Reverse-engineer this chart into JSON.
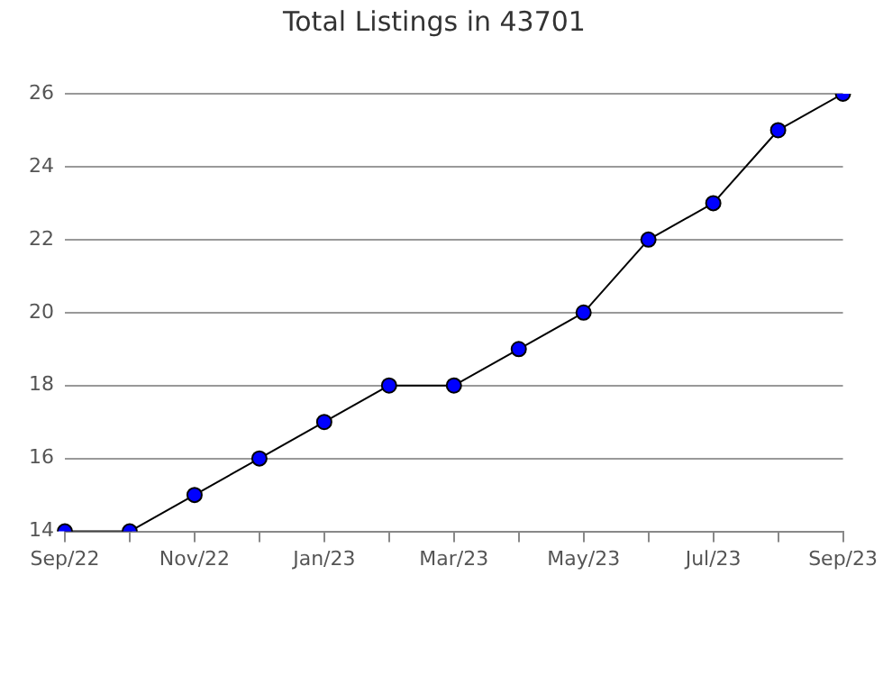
{
  "chart_data": {
    "type": "line",
    "title": "Total Listings in 43701",
    "categories": [
      "Sep/22",
      null,
      "Nov/22",
      null,
      "Jan/23",
      null,
      "Mar/23",
      null,
      "May/23",
      null,
      "Jul/23",
      null,
      "Sep/23"
    ],
    "series": [
      {
        "color": "#0000ff",
        "values": [
          14,
          14,
          15,
          16,
          17,
          18,
          18,
          19,
          20,
          22,
          23,
          25,
          26
        ]
      }
    ],
    "ylim": [
      14,
      26
    ],
    "yticks": [
      14,
      16,
      18,
      20,
      22,
      24,
      26
    ],
    "grid": "y",
    "legend": false,
    "marker": "circle",
    "line_style": "solid"
  }
}
